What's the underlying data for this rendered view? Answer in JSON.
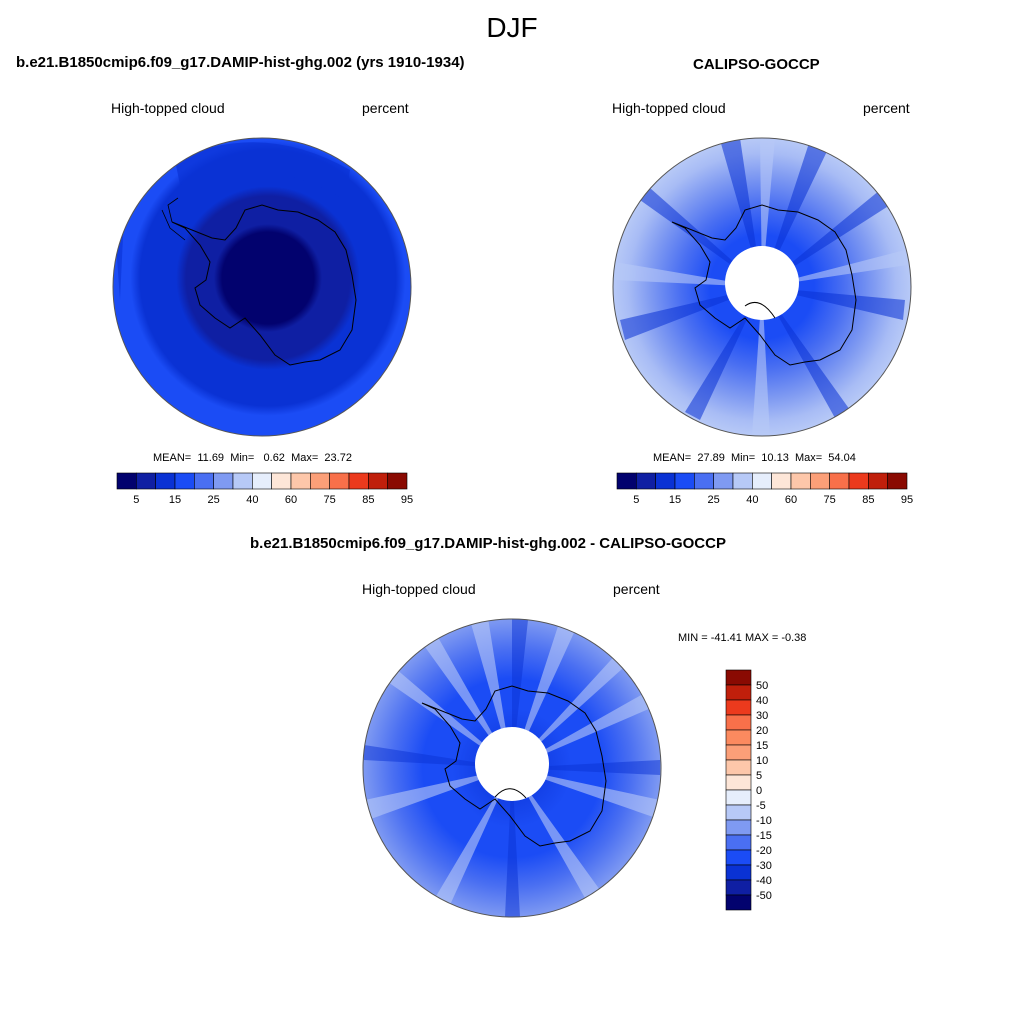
{
  "title": "DJF",
  "panels": [
    {
      "title": "b.e21.B1850cmip6.f09_g17.DAMIP-hist-ghg.002 (yrs 1910-1934)",
      "left_label": "High-topped cloud",
      "right_label": "percent",
      "stats": {
        "mean_label": "MEAN=",
        "mean": "11.69",
        "min_label": "Min=",
        "min": "0.62",
        "max_label": "Max=",
        "max": "23.72"
      }
    },
    {
      "title": "CALIPSO-GOCCP",
      "left_label": "High-topped cloud",
      "right_label": "percent",
      "stats": {
        "mean_label": "MEAN=",
        "mean": "27.89",
        "min_label": "Min=",
        "min": "10.13",
        "max_label": "Max=",
        "max": "54.04"
      }
    },
    {
      "title": "b.e21.B1850cmip6.f09_g17.DAMIP-hist-ghg.002 - CALIPSO-GOCCP",
      "left_label": "High-topped cloud",
      "right_label": "percent",
      "stats_text": "MIN = -41.41 MAX =  -0.38"
    }
  ],
  "colorbar_h": {
    "labels": [
      "5",
      "15",
      "25",
      "40",
      "60",
      "75",
      "85",
      "95"
    ],
    "colors": [
      "#02026e",
      "#0f1fa3",
      "#0a32d4",
      "#1b4cf5",
      "#4a6ff2",
      "#7f9af2",
      "#b7c9f7",
      "#e6eefc",
      "#fde6d8",
      "#fdc7aa",
      "#fb9f78",
      "#f8704a",
      "#ec3a1d",
      "#c01f0b",
      "#8a0a02"
    ]
  },
  "colorbar_v": {
    "labels": [
      "50",
      "40",
      "30",
      "20",
      "15",
      "10",
      "5",
      "0",
      "-5",
      "-10",
      "-15",
      "-20",
      "-30",
      "-40",
      "-50"
    ],
    "colors": [
      "#8a0a02",
      "#c01f0b",
      "#ec3a1d",
      "#f8704a",
      "#fb8a5f",
      "#fb9f78",
      "#fdc7aa",
      "#fde6d8",
      "#e6eefc",
      "#b7c9f7",
      "#7f9af2",
      "#4a6ff2",
      "#1b4cf5",
      "#0a32d4",
      "#0f1fa3",
      "#02026e"
    ]
  }
}
